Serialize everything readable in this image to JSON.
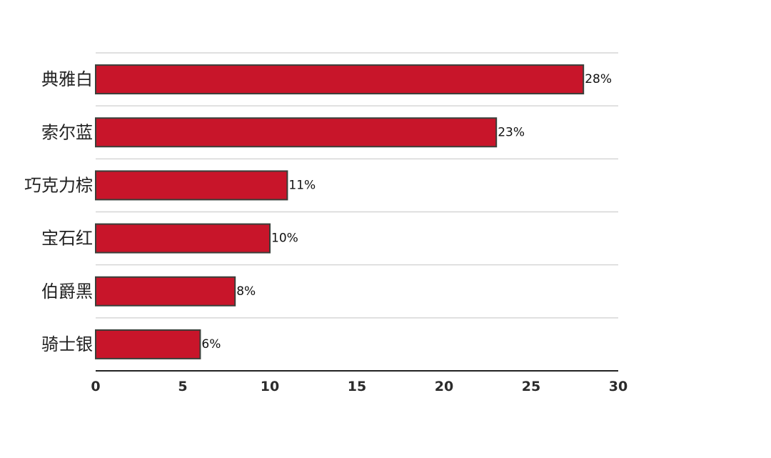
{
  "chart_data": {
    "type": "bar",
    "orientation": "horizontal",
    "categories": [
      "典雅白",
      "索尔蓝",
      "巧克力棕",
      "宝石红",
      "伯爵黑",
      "骑士银"
    ],
    "values": [
      28,
      23,
      11,
      10,
      8,
      6
    ],
    "data_labels": [
      "28%",
      "23%",
      "11%",
      "10%",
      "8%",
      "6%"
    ],
    "xlim": [
      0,
      30
    ],
    "x_ticks": [
      0,
      5,
      10,
      15,
      20,
      25,
      30
    ],
    "grid": true,
    "legend": "none",
    "bar_color": "#c8152a",
    "bar_edge_color": "#3a3f3a",
    "title": "",
    "xlabel": "",
    "ylabel": ""
  }
}
